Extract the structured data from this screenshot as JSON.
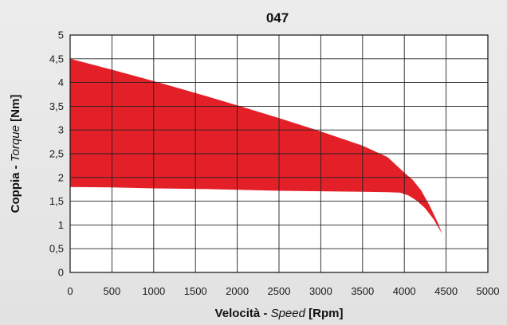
{
  "chart_data": {
    "type": "area",
    "title": "047",
    "xlabel": {
      "part1": "Velocità - ",
      "part2": "Speed",
      "part3": " [Rpm]"
    },
    "ylabel": {
      "part1": "Coppia - ",
      "part2": "Torque",
      "part3": " [Nm]"
    },
    "xlim": [
      0,
      5000
    ],
    "ylim": [
      0,
      5
    ],
    "x_ticks": [
      {
        "value": 0,
        "label": "0"
      },
      {
        "value": 500,
        "label": "500"
      },
      {
        "value": 1000,
        "label": "1000"
      },
      {
        "value": 1500,
        "label": "1500"
      },
      {
        "value": 2000,
        "label": "2000"
      },
      {
        "value": 2500,
        "label": "2500"
      },
      {
        "value": 3000,
        "label": "3000"
      },
      {
        "value": 3500,
        "label": "3500"
      },
      {
        "value": 4000,
        "label": "4000"
      },
      {
        "value": 4500,
        "label": "4500"
      },
      {
        "value": 5000,
        "label": "5000"
      }
    ],
    "y_ticks": [
      {
        "value": 0,
        "label": "0"
      },
      {
        "value": 0.5,
        "label": "0,5"
      },
      {
        "value": 1,
        "label": "1"
      },
      {
        "value": 1.5,
        "label": "1,5"
      },
      {
        "value": 2,
        "label": "2"
      },
      {
        "value": 2.5,
        "label": "2,5"
      },
      {
        "value": 3,
        "label": "3"
      },
      {
        "value": 3.5,
        "label": "3,5"
      },
      {
        "value": 4,
        "label": "4"
      },
      {
        "value": 4.5,
        "label": "4,5"
      },
      {
        "value": 5,
        "label": "5"
      }
    ],
    "grid": true,
    "fill_color": "#e32028",
    "series": [
      {
        "role": "upper",
        "x": [
          0,
          500,
          1000,
          1500,
          2000,
          2500,
          3000,
          3500,
          3800,
          4000,
          4100,
          4200,
          4300,
          4400,
          4500
        ],
        "y": [
          4.5,
          4.27,
          4.03,
          3.78,
          3.52,
          3.25,
          2.97,
          2.67,
          2.43,
          2.1,
          1.95,
          1.73,
          1.42,
          1.05,
          0.6
        ]
      },
      {
        "role": "lower",
        "x": [
          0,
          500,
          1000,
          1500,
          2000,
          2500,
          3000,
          3500,
          3800,
          3950,
          4050,
          4150,
          4250,
          4350,
          4450,
          4500
        ],
        "y": [
          1.8,
          1.79,
          1.77,
          1.76,
          1.74,
          1.72,
          1.71,
          1.7,
          1.69,
          1.68,
          1.62,
          1.51,
          1.35,
          1.12,
          0.82,
          0.6
        ]
      }
    ]
  }
}
